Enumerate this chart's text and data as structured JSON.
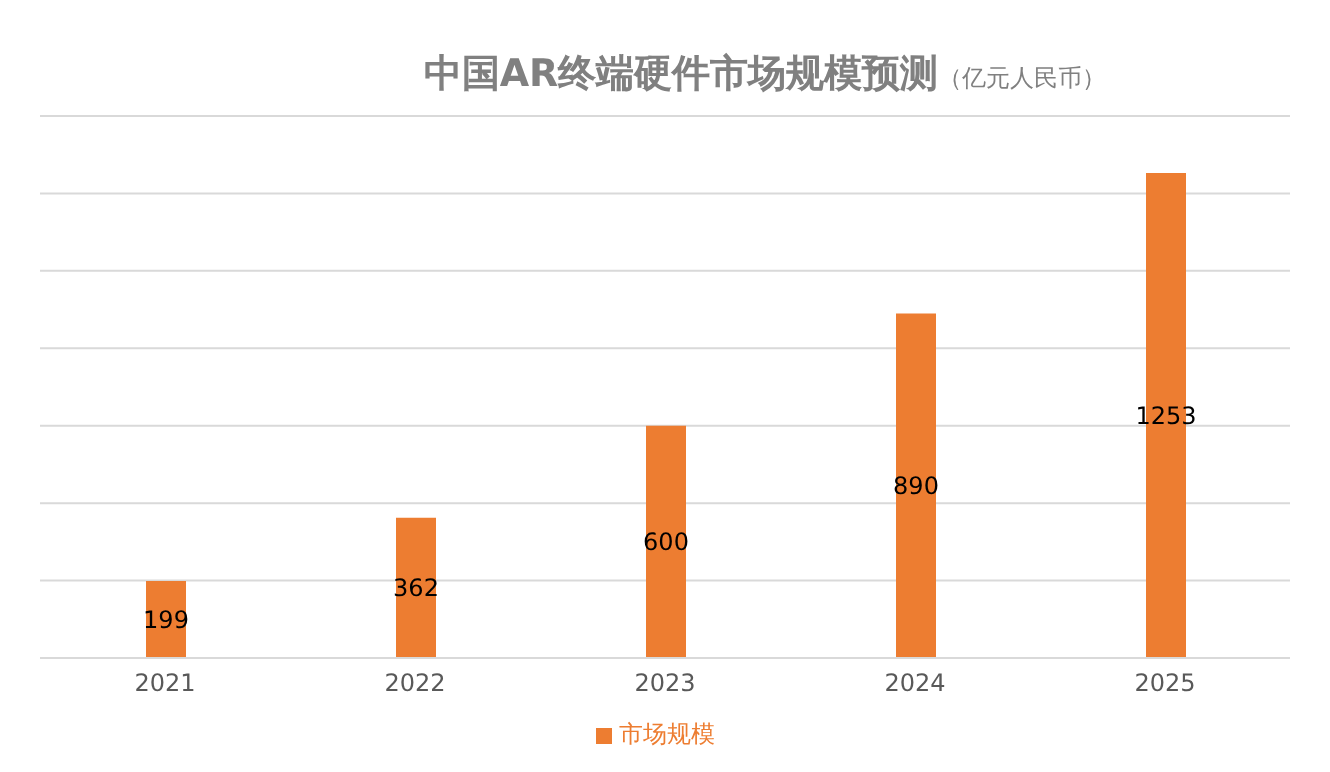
{
  "chart_data": {
    "type": "bar",
    "title": "中国AR终端硬件市场规模预测",
    "subtitle": "（亿元人民币）",
    "categories": [
      "2021",
      "2022",
      "2023",
      "2024",
      "2025"
    ],
    "series": [
      {
        "name": "市场规模",
        "color": "#ed7d31",
        "values": [
          199,
          362,
          600,
          890,
          1253
        ]
      }
    ],
    "ylim": [
      0,
      1400
    ],
    "yticks": [
      {
        "value": 0,
        "label": null
      },
      {
        "value": 200,
        "label": null
      },
      {
        "value": 400,
        "label": null
      },
      {
        "value": 600,
        "label": null
      },
      {
        "value": 800,
        "label": null
      },
      {
        "value": 1000,
        "label": null
      },
      {
        "value": 1200,
        "label": null
      },
      {
        "value": 1400,
        "label": null
      }
    ],
    "tick_labels": "x",
    "grid": "y",
    "legend": "bottom",
    "data_labels": true
  }
}
